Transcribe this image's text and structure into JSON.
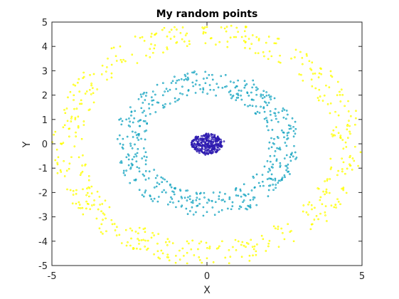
{
  "chart_data": {
    "type": "scatter",
    "title": "My random points",
    "xlabel": "X",
    "ylabel": "Y",
    "xlim": [
      -5,
      5
    ],
    "ylim": [
      -5,
      5
    ],
    "xticks": [
      "-5",
      "0",
      "5"
    ],
    "yticks": [
      "5",
      "4",
      "3",
      "2",
      "1",
      "0",
      "-1",
      "-2",
      "-3",
      "-4",
      "-5"
    ],
    "xtick_values": [
      -5,
      0,
      5
    ],
    "ytick_values": [
      5,
      4,
      3,
      2,
      1,
      0,
      -1,
      -2,
      -3,
      -4,
      -5
    ],
    "grid": false,
    "legend": "none",
    "marker": "dot",
    "series": [
      {
        "color": "#2e1bb0",
        "shape": "disk",
        "values_sample": [
          [
            0.05,
            0.1
          ],
          [
            -0.2,
            -0.05
          ],
          [
            0.3,
            0.15
          ],
          [
            0.1,
            -0.3
          ],
          [
            -0.35,
            0.2
          ],
          [
            0.25,
            -0.2
          ],
          [
            -0.1,
            0.35
          ],
          [
            0.4,
            0.0
          ],
          [
            -0.4,
            -0.15
          ],
          [
            0.0,
            -0.4
          ],
          [
            0.15,
            0.3
          ],
          [
            -0.25,
            -0.3
          ],
          [
            0.45,
            -0.1
          ],
          [
            -0.05,
            0.05
          ],
          [
            0.2,
            0.05
          ],
          [
            -0.3,
            0.0
          ],
          [
            0.35,
            0.3
          ],
          [
            -0.15,
            -0.2
          ],
          [
            0.0,
            0.25
          ],
          [
            0.55,
            0.1
          ],
          [
            -0.5,
            0.05
          ],
          [
            0.1,
            -0.1
          ],
          [
            -0.2,
            0.15
          ],
          [
            0.3,
            -0.35
          ],
          [
            -0.05,
            -0.45
          ]
        ]
      },
      {
        "color": "#1aa6c2",
        "shape": "ring",
        "values_sample": [
          [
            2.8,
            0.3
          ],
          [
            2.6,
            1.2
          ],
          [
            2.0,
            2.0
          ],
          [
            1.0,
            2.6
          ],
          [
            0.0,
            2.7
          ],
          [
            -1.0,
            2.5
          ],
          [
            -2.0,
            1.8
          ],
          [
            -2.6,
            1.0
          ],
          [
            -2.8,
            0.0
          ],
          [
            -2.6,
            -1.1
          ],
          [
            -2.0,
            -2.0
          ],
          [
            -1.0,
            -2.6
          ],
          [
            0.0,
            -2.8
          ],
          [
            1.1,
            -2.6
          ],
          [
            2.0,
            -1.9
          ],
          [
            2.6,
            -1.0
          ],
          [
            2.3,
            0.9
          ],
          [
            1.5,
            1.8
          ],
          [
            -1.6,
            1.7
          ],
          [
            -2.3,
            -1.5
          ],
          [
            1.5,
            -2.2
          ],
          [
            -0.5,
            -2.4
          ],
          [
            0.5,
            2.3
          ],
          [
            2.2,
            -1.5
          ],
          [
            -2.4,
            0.5
          ]
        ]
      },
      {
        "color": "#ffff00",
        "shape": "ring",
        "values_sample": [
          [
            4.6,
            0.5
          ],
          [
            4.2,
            2.0
          ],
          [
            3.3,
            3.4
          ],
          [
            2.0,
            4.4
          ],
          [
            0.0,
            4.8
          ],
          [
            -1.8,
            4.4
          ],
          [
            -3.2,
            3.5
          ],
          [
            -4.3,
            1.8
          ],
          [
            -4.7,
            0.0
          ],
          [
            -4.4,
            -1.9
          ],
          [
            -3.4,
            -3.3
          ],
          [
            -1.9,
            -4.3
          ],
          [
            0.0,
            -4.7
          ],
          [
            1.9,
            -4.4
          ],
          [
            3.4,
            -3.3
          ],
          [
            4.4,
            -1.8
          ],
          [
            4.0,
            2.8
          ],
          [
            -4.0,
            2.7
          ],
          [
            -4.1,
            -2.5
          ],
          [
            4.1,
            -2.6
          ],
          [
            1.0,
            4.6
          ],
          [
            -1.0,
            -4.6
          ],
          [
            2.8,
            -4.0
          ],
          [
            -2.8,
            4.0
          ],
          [
            4.7,
            -0.6
          ]
        ]
      }
    ]
  }
}
